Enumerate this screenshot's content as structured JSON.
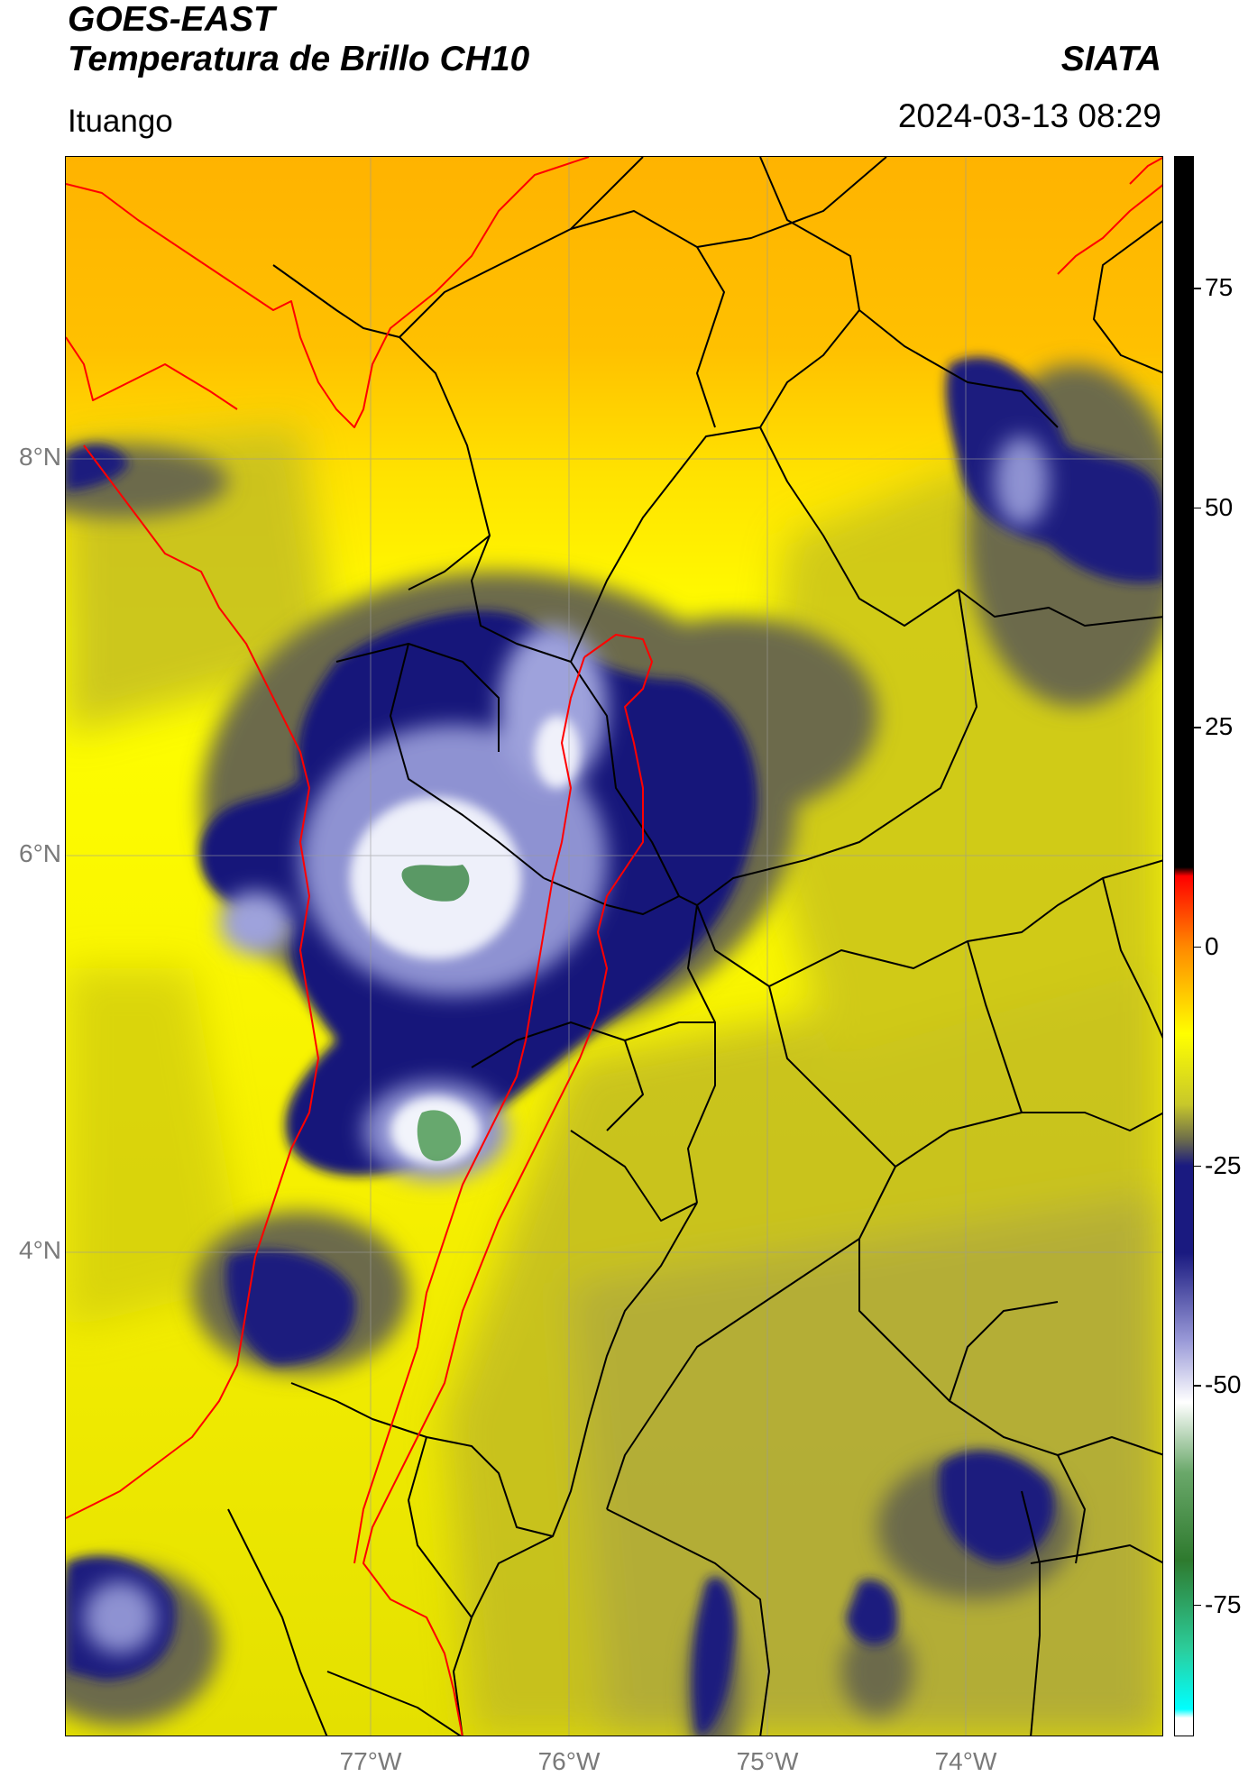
{
  "header": {
    "title_line1": "GOES-EAST",
    "title_line2": "Temperatura de Brillo CH10",
    "brand": "SIATA",
    "region": "Ituango",
    "timestamp": "2024-03-13 08:29"
  },
  "map": {
    "lat_labels": [
      {
        "value": 8,
        "label": "8°N"
      },
      {
        "value": 6,
        "label": "6°N"
      },
      {
        "value": 4,
        "label": "4°N"
      }
    ],
    "lon_labels": [
      {
        "value": -77,
        "label": "77°W"
      },
      {
        "value": -76,
        "label": "76°W"
      },
      {
        "value": -75,
        "label": "75°W"
      },
      {
        "value": -74,
        "label": "74°W"
      }
    ],
    "lat_range": [
      1.7,
      9.5
    ],
    "lon_range": [
      -78.55,
      -73.0
    ],
    "colors": {
      "warm_orange": "#ffb300",
      "yellow": "#ffff00",
      "olive": "#a9a431",
      "deep_blue": "#17177a",
      "light_blue": "#9ca0dc",
      "white": "#ffffff",
      "green": "#3f8a4a",
      "coastline": "#ff0000",
      "borders": "#000000"
    }
  },
  "colorbar": {
    "range": [
      -90,
      90
    ],
    "tick_values": [
      75,
      50,
      25,
      0,
      -25,
      -50,
      -75
    ],
    "tick_labels": [
      "75",
      "50",
      "25",
      "0",
      "-25",
      "-50",
      "-75"
    ],
    "stops": [
      {
        "value": 90,
        "color": "#000000"
      },
      {
        "value": 9,
        "color": "#000000"
      },
      {
        "value": 8,
        "color": "#ff0000"
      },
      {
        "value": 0,
        "color": "#ff8800"
      },
      {
        "value": -10,
        "color": "#ffff00"
      },
      {
        "value": -18,
        "color": "#c8c82a"
      },
      {
        "value": -22,
        "color": "#6e6e4a"
      },
      {
        "value": -25,
        "color": "#1a1a80"
      },
      {
        "value": -35,
        "color": "#1a1a80"
      },
      {
        "value": -45,
        "color": "#9a9ad8"
      },
      {
        "value": -52,
        "color": "#ffffff"
      },
      {
        "value": -60,
        "color": "#6aa86a"
      },
      {
        "value": -70,
        "color": "#2e7a2e"
      },
      {
        "value": -80,
        "color": "#2ccc99"
      },
      {
        "value": -87,
        "color": "#00ffff"
      },
      {
        "value": -88,
        "color": "#ffffff"
      },
      {
        "value": -90,
        "color": "#ffffff"
      }
    ]
  }
}
